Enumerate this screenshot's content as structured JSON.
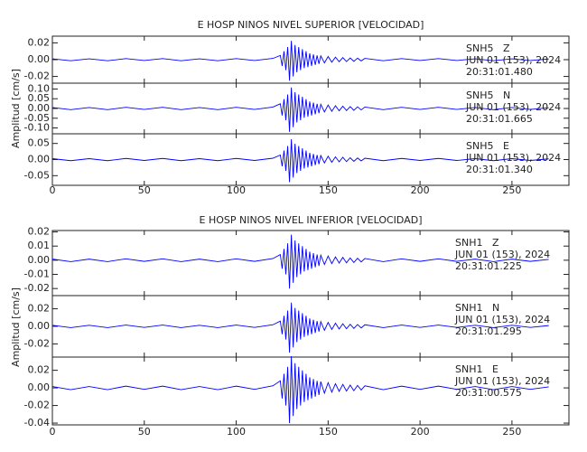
{
  "chart_data": [
    {
      "type": "line",
      "title": "E HOSP NINOS NIVEL SUPERIOR [VELOCIDAD]",
      "ylabel": "Amplitud [cm/s]",
      "xlim": [
        0,
        281
      ],
      "xticks": [
        0,
        50,
        100,
        150,
        200,
        250
      ],
      "x": [
        0,
        10,
        20,
        30,
        40,
        50,
        60,
        70,
        80,
        90,
        100,
        110,
        120,
        124,
        125,
        126,
        127,
        128,
        129,
        130,
        131,
        132,
        133,
        134,
        135,
        136,
        137,
        138,
        139,
        140,
        141,
        142,
        143,
        144,
        145,
        146,
        148,
        150,
        152,
        154,
        156,
        158,
        160,
        162,
        164,
        166,
        168,
        170,
        180,
        190,
        200,
        210,
        220,
        230,
        240,
        250,
        260,
        270
      ],
      "panels": [
        {
          "station": "SNH5   Z",
          "date": "JUN 01 (153), 2024",
          "time": "20:31:01.480",
          "color": "#0000ff",
          "ylim": [
            -0.028,
            0.028
          ],
          "yticks": [
            0.02,
            {
              "value": 0,
              "label": "0.00"
            },
            -0.02
          ],
          "values": [
            0.001,
            -0.0013,
            0.001,
            -0.0013,
            0.0013,
            -0.001,
            0.0013,
            -0.0013,
            0.001,
            -0.0013,
            0.0013,
            -0.001,
            0.0015,
            0.005,
            -0.0075,
            0.01,
            -0.0125,
            0.015,
            -0.025,
            0.0225,
            -0.02,
            0.0175,
            -0.015,
            0.015,
            -0.0125,
            0.0125,
            -0.01,
            0.01,
            -0.0088,
            0.0075,
            -0.0075,
            0.0063,
            -0.0063,
            0.005,
            -0.005,
            0.0045,
            -0.0038,
            0.0038,
            -0.003,
            0.003,
            -0.0025,
            0.0025,
            -0.0023,
            0.002,
            -0.002,
            0.0018,
            -0.0015,
            0.0015,
            -0.0013,
            0.0013,
            -0.001,
            0.0013,
            -0.001,
            0.001,
            -0.0013,
            0.001,
            -0.001,
            0.0008
          ]
        },
        {
          "station": "SNH5   N",
          "date": "JUN 01 (153), 2024",
          "time": "20:31:01.665",
          "color": "#0000ff",
          "ylim": [
            -0.13,
            0.13
          ],
          "yticks": [
            {
              "value": 0.1,
              "label": "0.10"
            },
            0.05,
            {
              "value": 0,
              "label": "0.00"
            },
            -0.05,
            {
              "value": -0.1,
              "label": "-0.10"
            }
          ],
          "values": [
            0.0048,
            -0.006,
            0.0048,
            -0.006,
            0.006,
            -0.0048,
            0.006,
            -0.006,
            0.0048,
            -0.006,
            0.006,
            -0.0048,
            0.0072,
            0.024,
            -0.036,
            0.048,
            -0.06,
            0.072,
            -0.12,
            0.108,
            -0.096,
            0.084,
            -0.072,
            0.072,
            -0.06,
            0.06,
            -0.048,
            0.048,
            -0.042,
            0.036,
            -0.036,
            0.03,
            -0.03,
            0.024,
            -0.024,
            0.0216,
            -0.018,
            0.018,
            -0.0144,
            0.0144,
            -0.012,
            0.012,
            -0.0108,
            0.0096,
            -0.0096,
            0.0084,
            -0.0072,
            0.0072,
            -0.006,
            0.006,
            -0.0048,
            0.006,
            -0.0048,
            0.0048,
            -0.006,
            0.0048,
            -0.0048,
            0.0036
          ]
        },
        {
          "station": "SNH5   E",
          "date": "JUN 01 (153), 2024",
          "time": "20:31:01.340",
          "color": "#0000ff",
          "ylim": [
            -0.08,
            0.08
          ],
          "yticks": [
            0.05,
            {
              "value": 0,
              "label": "0.00"
            },
            -0.05
          ],
          "values": [
            0.0028,
            -0.0035,
            0.0028,
            -0.0035,
            0.0035,
            -0.0028,
            0.0035,
            -0.0035,
            0.0028,
            -0.0035,
            0.0035,
            -0.0028,
            0.0042,
            0.014,
            -0.021,
            0.028,
            -0.035,
            0.042,
            -0.07,
            0.063,
            -0.056,
            0.049,
            -0.042,
            0.042,
            -0.035,
            0.035,
            -0.028,
            0.028,
            -0.0245,
            0.021,
            -0.021,
            0.0175,
            -0.0175,
            0.014,
            -0.014,
            0.0126,
            -0.0105,
            0.0105,
            -0.0084,
            0.0084,
            -0.007,
            0.007,
            -0.0063,
            0.0056,
            -0.0056,
            0.0049,
            -0.0042,
            0.0042,
            -0.0035,
            0.0035,
            -0.0028,
            0.0035,
            -0.0028,
            0.0028,
            -0.0035,
            0.0028,
            -0.0028,
            0.0021
          ]
        }
      ]
    },
    {
      "type": "line",
      "title": "E HOSP NINOS NIVEL INFERIOR [VELOCIDAD]",
      "ylabel": "Amplitud [cm/s]",
      "xlim": [
        0,
        281
      ],
      "xticks": [
        0,
        50,
        100,
        150,
        200,
        250
      ],
      "x": [
        0,
        10,
        20,
        30,
        40,
        50,
        60,
        70,
        80,
        90,
        100,
        110,
        120,
        124,
        125,
        126,
        127,
        128,
        129,
        130,
        131,
        132,
        133,
        134,
        135,
        136,
        137,
        138,
        139,
        140,
        141,
        142,
        143,
        144,
        145,
        146,
        148,
        150,
        152,
        154,
        156,
        158,
        160,
        162,
        164,
        166,
        168,
        170,
        180,
        190,
        200,
        210,
        220,
        230,
        240,
        250,
        260,
        270
      ],
      "panels": [
        {
          "station": "SNH1   Z",
          "date": "JUN 01 (153), 2024",
          "time": "20:31:01.225",
          "color": "#0000ff",
          "ylim": [
            -0.025,
            0.021
          ],
          "yticks": [
            0.02,
            0.01,
            {
              "value": 0,
              "label": "0.00"
            },
            -0.01,
            -0.02
          ],
          "values": [
            0.0008,
            -0.001,
            0.0008,
            -0.001,
            0.001,
            -0.0008,
            0.001,
            -0.001,
            0.0008,
            -0.001,
            0.001,
            -0.0008,
            0.0012,
            0.004,
            -0.006,
            0.008,
            -0.01,
            0.012,
            -0.02,
            0.018,
            -0.016,
            0.014,
            -0.012,
            0.012,
            -0.01,
            0.01,
            -0.008,
            0.008,
            -0.007,
            0.006,
            -0.006,
            0.005,
            -0.005,
            0.004,
            -0.004,
            0.0036,
            -0.003,
            0.003,
            -0.0024,
            0.0024,
            -0.002,
            0.002,
            -0.0018,
            0.0016,
            -0.0016,
            0.0014,
            -0.0012,
            0.0012,
            -0.001,
            0.001,
            -0.0008,
            0.001,
            -0.0008,
            0.0008,
            -0.001,
            0.0008,
            -0.0008,
            0.0006
          ]
        },
        {
          "station": "SNH1   N",
          "date": "JUN 01 (153), 2024",
          "time": "20:31:01.295",
          "color": "#0000ff",
          "ylim": [
            -0.035,
            0.035
          ],
          "yticks": [
            0.02,
            {
              "value": 0,
              "label": "0.00"
            },
            -0.02
          ],
          "values": [
            0.0012,
            -0.0015,
            0.0012,
            -0.0015,
            0.0015,
            -0.0012,
            0.0015,
            -0.0015,
            0.0012,
            -0.0015,
            0.0015,
            -0.0012,
            0.0018,
            0.006,
            -0.009,
            0.012,
            -0.015,
            0.018,
            -0.03,
            0.027,
            -0.024,
            0.021,
            -0.018,
            0.018,
            -0.015,
            0.015,
            -0.012,
            0.012,
            -0.0105,
            0.009,
            -0.009,
            0.0075,
            -0.0075,
            0.006,
            -0.006,
            0.0054,
            -0.0045,
            0.0045,
            -0.0036,
            0.0036,
            -0.003,
            0.003,
            -0.0027,
            0.0024,
            -0.0024,
            0.0021,
            -0.0018,
            0.0018,
            -0.0015,
            0.0015,
            -0.0012,
            0.0015,
            -0.0012,
            0.0012,
            -0.0015,
            0.0012,
            -0.0012,
            0.0009
          ]
        },
        {
          "station": "SNH1   E",
          "date": "JUN 01 (153), 2024",
          "time": "20:31:00.575",
          "color": "#0000ff",
          "ylim": [
            -0.042,
            0.035
          ],
          "yticks": [
            0.02,
            {
              "value": 0,
              "label": "0.00"
            },
            -0.02,
            -0.04
          ],
          "values": [
            0.0016,
            -0.002,
            0.0016,
            -0.002,
            0.002,
            -0.0016,
            0.002,
            -0.002,
            0.0016,
            -0.002,
            0.002,
            -0.0016,
            0.0024,
            0.008,
            -0.012,
            0.016,
            -0.02,
            0.024,
            -0.04,
            0.036,
            -0.032,
            0.028,
            -0.024,
            0.024,
            -0.02,
            0.02,
            -0.016,
            0.016,
            -0.014,
            0.012,
            -0.012,
            0.01,
            -0.01,
            0.008,
            -0.008,
            0.0072,
            -0.006,
            0.006,
            -0.0048,
            0.0048,
            -0.004,
            0.004,
            -0.0036,
            0.0032,
            -0.0032,
            0.0028,
            -0.0024,
            0.0024,
            -0.002,
            0.002,
            -0.0016,
            0.002,
            -0.0016,
            0.0016,
            -0.002,
            0.0016,
            -0.0016,
            0.0012
          ]
        }
      ]
    }
  ]
}
